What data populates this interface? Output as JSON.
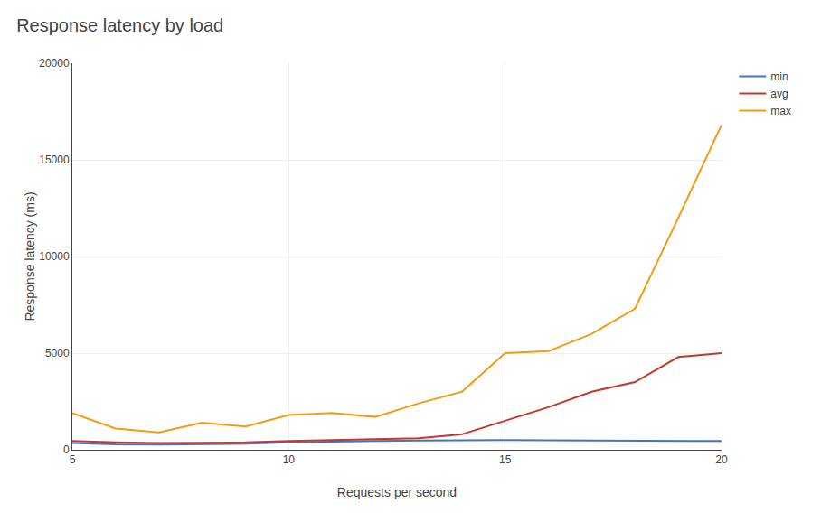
{
  "chart_data": {
    "type": "line",
    "title": "Response latency by load",
    "x_label": "Requests per second",
    "y_label": "Response latency (ms)",
    "x": [
      5,
      6,
      7,
      8,
      9,
      10,
      11,
      12,
      13,
      14,
      15,
      16,
      17,
      18,
      19,
      20
    ],
    "series": [
      {
        "name": "min",
        "color": "#4472c4",
        "values": [
          350,
          280,
          270,
          300,
          310,
          380,
          430,
          450,
          480,
          500,
          500,
          490,
          480,
          470,
          460,
          450
        ]
      },
      {
        "name": "avg",
        "color": "#c0392b",
        "values": [
          450,
          380,
          350,
          370,
          380,
          450,
          500,
          520,
          600,
          800,
          1500,
          2200,
          3000,
          3500,
          4800,
          5000
        ]
      },
      {
        "name": "max",
        "color": "#f39c12",
        "values": [
          1900,
          1100,
          900,
          1400,
          1200,
          1800,
          1900,
          1700,
          2400,
          3000,
          5000,
          5100,
          6000,
          7300,
          12000,
          16800
        ]
      }
    ],
    "xlim": [
      5,
      20
    ],
    "xticks": [
      5,
      10,
      15,
      20
    ],
    "ylim": [
      0,
      20000
    ],
    "yticks": [
      0,
      5000,
      10000,
      15000,
      20000
    ],
    "grid": true,
    "legend": "right"
  }
}
